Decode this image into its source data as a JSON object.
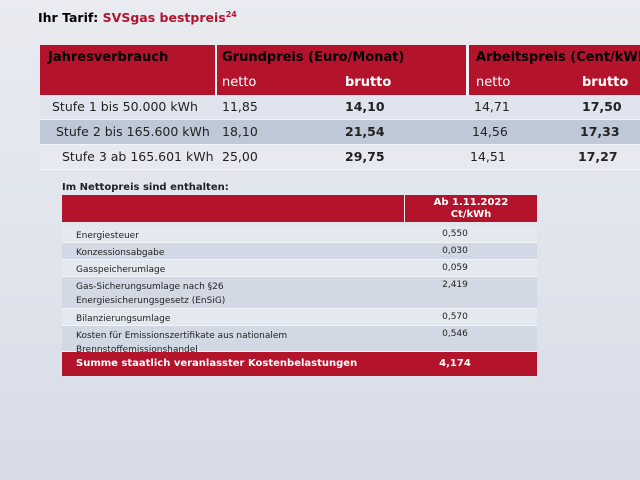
{
  "header": {
    "prefix": "Ihr Tarif:",
    "brand": "SVSgas bestpreis",
    "footnote": "24"
  },
  "tariff_table": {
    "header": [
      "Jahresverbrauch",
      "Grundpreis (Euro/Monat)",
      "Arbeitspreis (Cent/kWh)"
    ],
    "subheader": [
      "netto",
      "brutto",
      "netto",
      "brutto"
    ],
    "rows": [
      [
        "Stufe 1 bis 50.000 kWh",
        "11,85",
        "14,10",
        "14,71",
        "17,50"
      ],
      [
        "Stufe 2 bis 165.600 kWh",
        "18,10",
        "21,54",
        "14,56",
        "17,33"
      ],
      [
        "Stufe 3 ab 165.601 kWh",
        "25,00",
        "29,75",
        "14,51",
        "17,27"
      ]
    ]
  },
  "levy_table": {
    "caption": "Im Nettopreis sind enthalten:",
    "header": [
      "Ab 1.11.2022",
      "Ct/kWh"
    ],
    "rows": [
      [
        "Energiesteuer",
        "0,550"
      ],
      [
        "Konzessionsabgabe",
        "0,030"
      ],
      [
        "Gasspeicherumlage",
        "0,059"
      ],
      [
        "Gas-Sicherungsumlage nach §26 Energiesicherungsgesetz (EnSiG)",
        "2,419"
      ],
      [
        "Bilanzierungsumlage",
        "0,570"
      ],
      [
        "Kosten für Emissionszertifikate aus nationalem Brennstoffemissionshandel",
        "0,546"
      ]
    ],
    "total": [
      "Summe staatlich veranlasster Kostenbelastungen",
      "4,174"
    ]
  }
}
